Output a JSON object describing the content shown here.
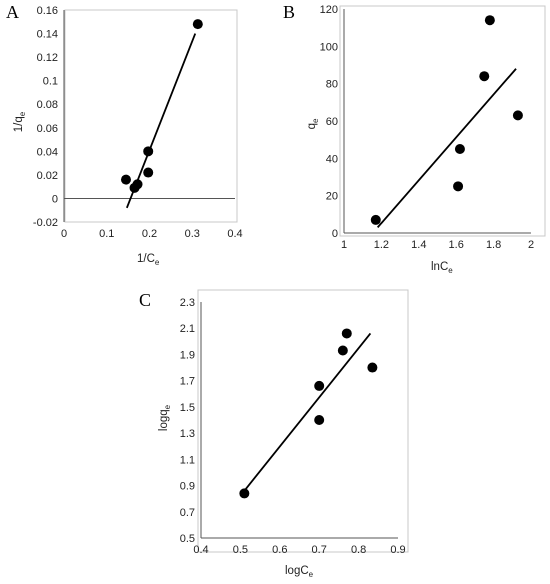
{
  "chart_data": [
    {
      "panel": "A",
      "type": "scatter",
      "xlabel": "1/C",
      "xlabel_sub": "e",
      "ylabel": "1/q",
      "ylabel_sub": "e",
      "xlim": [
        0,
        0.4
      ],
      "ylim": [
        -0.02,
        0.16
      ],
      "xticks": [
        0,
        0.1,
        0.2,
        0.3,
        0.4
      ],
      "xtick_labels": [
        "0",
        "0.1",
        "0.2",
        "0.3",
        "0.4"
      ],
      "yticks": [
        -0.02,
        0,
        0.02,
        0.04,
        0.06,
        0.08,
        0.1,
        0.12,
        0.14,
        0.16
      ],
      "ytick_labels": [
        "-0.02",
        "0",
        "0.02",
        "0.04",
        "0.06",
        "0.08",
        "0.1",
        "0.12",
        "0.14",
        "0.16"
      ],
      "points": [
        {
          "x": 0.145,
          "y": 0.016
        },
        {
          "x": 0.165,
          "y": 0.009
        },
        {
          "x": 0.172,
          "y": 0.012
        },
        {
          "x": 0.197,
          "y": 0.022
        },
        {
          "x": 0.197,
          "y": 0.04
        },
        {
          "x": 0.313,
          "y": 0.148
        }
      ],
      "trendline": [
        [
          0.147,
          -0.008
        ],
        [
          0.307,
          0.14
        ]
      ],
      "grid": false,
      "axes_at_zero": true
    },
    {
      "panel": "B",
      "type": "scatter",
      "xlabel": "lnC",
      "xlabel_sub": "e",
      "ylabel": "q",
      "ylabel_sub": "e",
      "xlim": [
        1,
        2
      ],
      "ylim": [
        0,
        120
      ],
      "xticks": [
        1,
        1.2,
        1.4,
        1.6,
        1.8,
        2
      ],
      "xtick_labels": [
        "1",
        "1.2",
        "1.4",
        "1.6",
        "1.8",
        "2"
      ],
      "yticks": [
        0,
        20,
        40,
        60,
        80,
        100,
        120
      ],
      "ytick_labels": [
        "0",
        "20",
        "40",
        "60",
        "80",
        "100",
        "120"
      ],
      "points": [
        {
          "x": 1.17,
          "y": 7
        },
        {
          "x": 1.61,
          "y": 25
        },
        {
          "x": 1.62,
          "y": 45
        },
        {
          "x": 1.75,
          "y": 84
        },
        {
          "x": 1.78,
          "y": 114
        },
        {
          "x": 1.93,
          "y": 63
        }
      ],
      "trendline": [
        [
          1.18,
          3
        ],
        [
          1.92,
          88
        ]
      ],
      "grid": false,
      "axes_at_zero": false
    },
    {
      "panel": "C",
      "type": "scatter",
      "xlabel": "logC",
      "xlabel_sub": "e",
      "ylabel": "logq",
      "ylabel_sub": "e",
      "xlim": [
        0.4,
        0.9
      ],
      "ylim": [
        0.5,
        2.3
      ],
      "xticks": [
        0.4,
        0.5,
        0.6,
        0.7,
        0.8,
        0.9
      ],
      "xtick_labels": [
        "0.4",
        "0.5",
        "0.6",
        "0.7",
        "0.8",
        "0.9"
      ],
      "yticks": [
        0.5,
        0.7,
        0.9,
        1.1,
        1.3,
        1.5,
        1.7,
        1.9,
        2.1,
        2.3
      ],
      "ytick_labels": [
        "0.5",
        "0.7",
        "0.9",
        "1.1",
        "1.3",
        "1.5",
        "1.7",
        "1.9",
        "2.1",
        "2.3"
      ],
      "points": [
        {
          "x": 0.51,
          "y": 0.84
        },
        {
          "x": 0.7,
          "y": 1.4
        },
        {
          "x": 0.7,
          "y": 1.66
        },
        {
          "x": 0.76,
          "y": 1.93
        },
        {
          "x": 0.77,
          "y": 2.06
        },
        {
          "x": 0.835,
          "y": 1.8
        }
      ],
      "trendline": [
        [
          0.51,
          0.86
        ],
        [
          0.83,
          2.06
        ]
      ],
      "grid": false,
      "axes_at_zero": false
    }
  ]
}
